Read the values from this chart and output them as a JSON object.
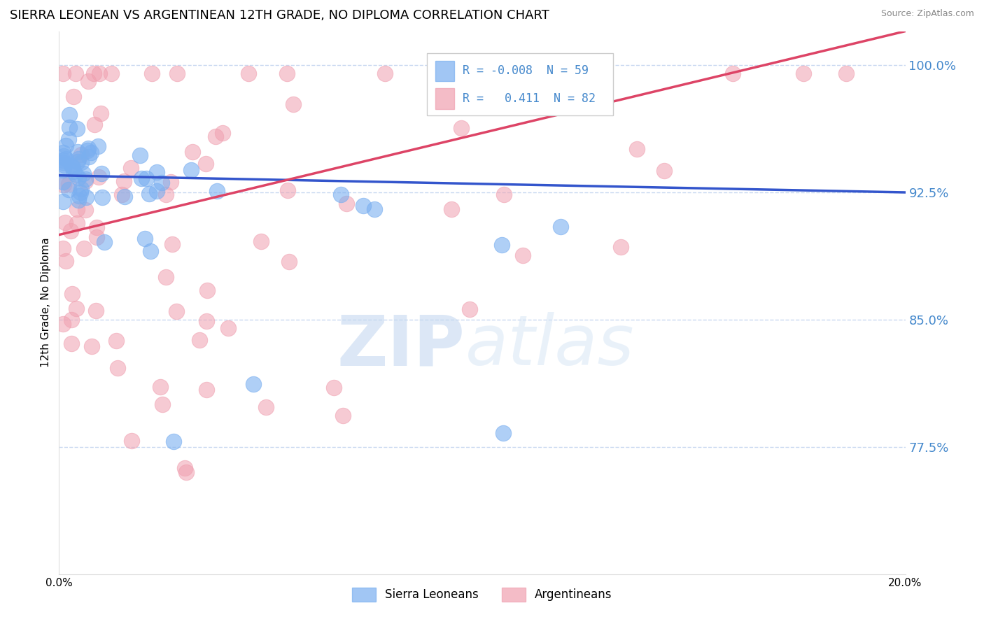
{
  "title": "SIERRA LEONEAN VS ARGENTINEAN 12TH GRADE, NO DIPLOMA CORRELATION CHART",
  "source": "Source: ZipAtlas.com",
  "ylabel": "12th Grade, No Diploma",
  "xmin": 0.0,
  "xmax": 0.2,
  "ymin": 0.7,
  "ymax": 1.02,
  "ytick_vals": [
    0.775,
    0.85,
    0.925,
    1.0
  ],
  "ytick_labels": [
    "77.5%",
    "85.0%",
    "92.5%",
    "100.0%"
  ],
  "R_blue": -0.008,
  "N_blue": 59,
  "R_pink": 0.411,
  "N_pink": 82,
  "blue_color": "#7aaff0",
  "pink_color": "#f0a0b0",
  "blue_line_color": "#3355cc",
  "pink_line_color": "#dd4466",
  "grid_color": "#c8d8f0",
  "tick_label_color": "#4488cc",
  "blue_trend_intercept": 0.935,
  "blue_trend_slope": -0.05,
  "pink_trend_intercept": 0.9,
  "pink_trend_slope": 0.6
}
